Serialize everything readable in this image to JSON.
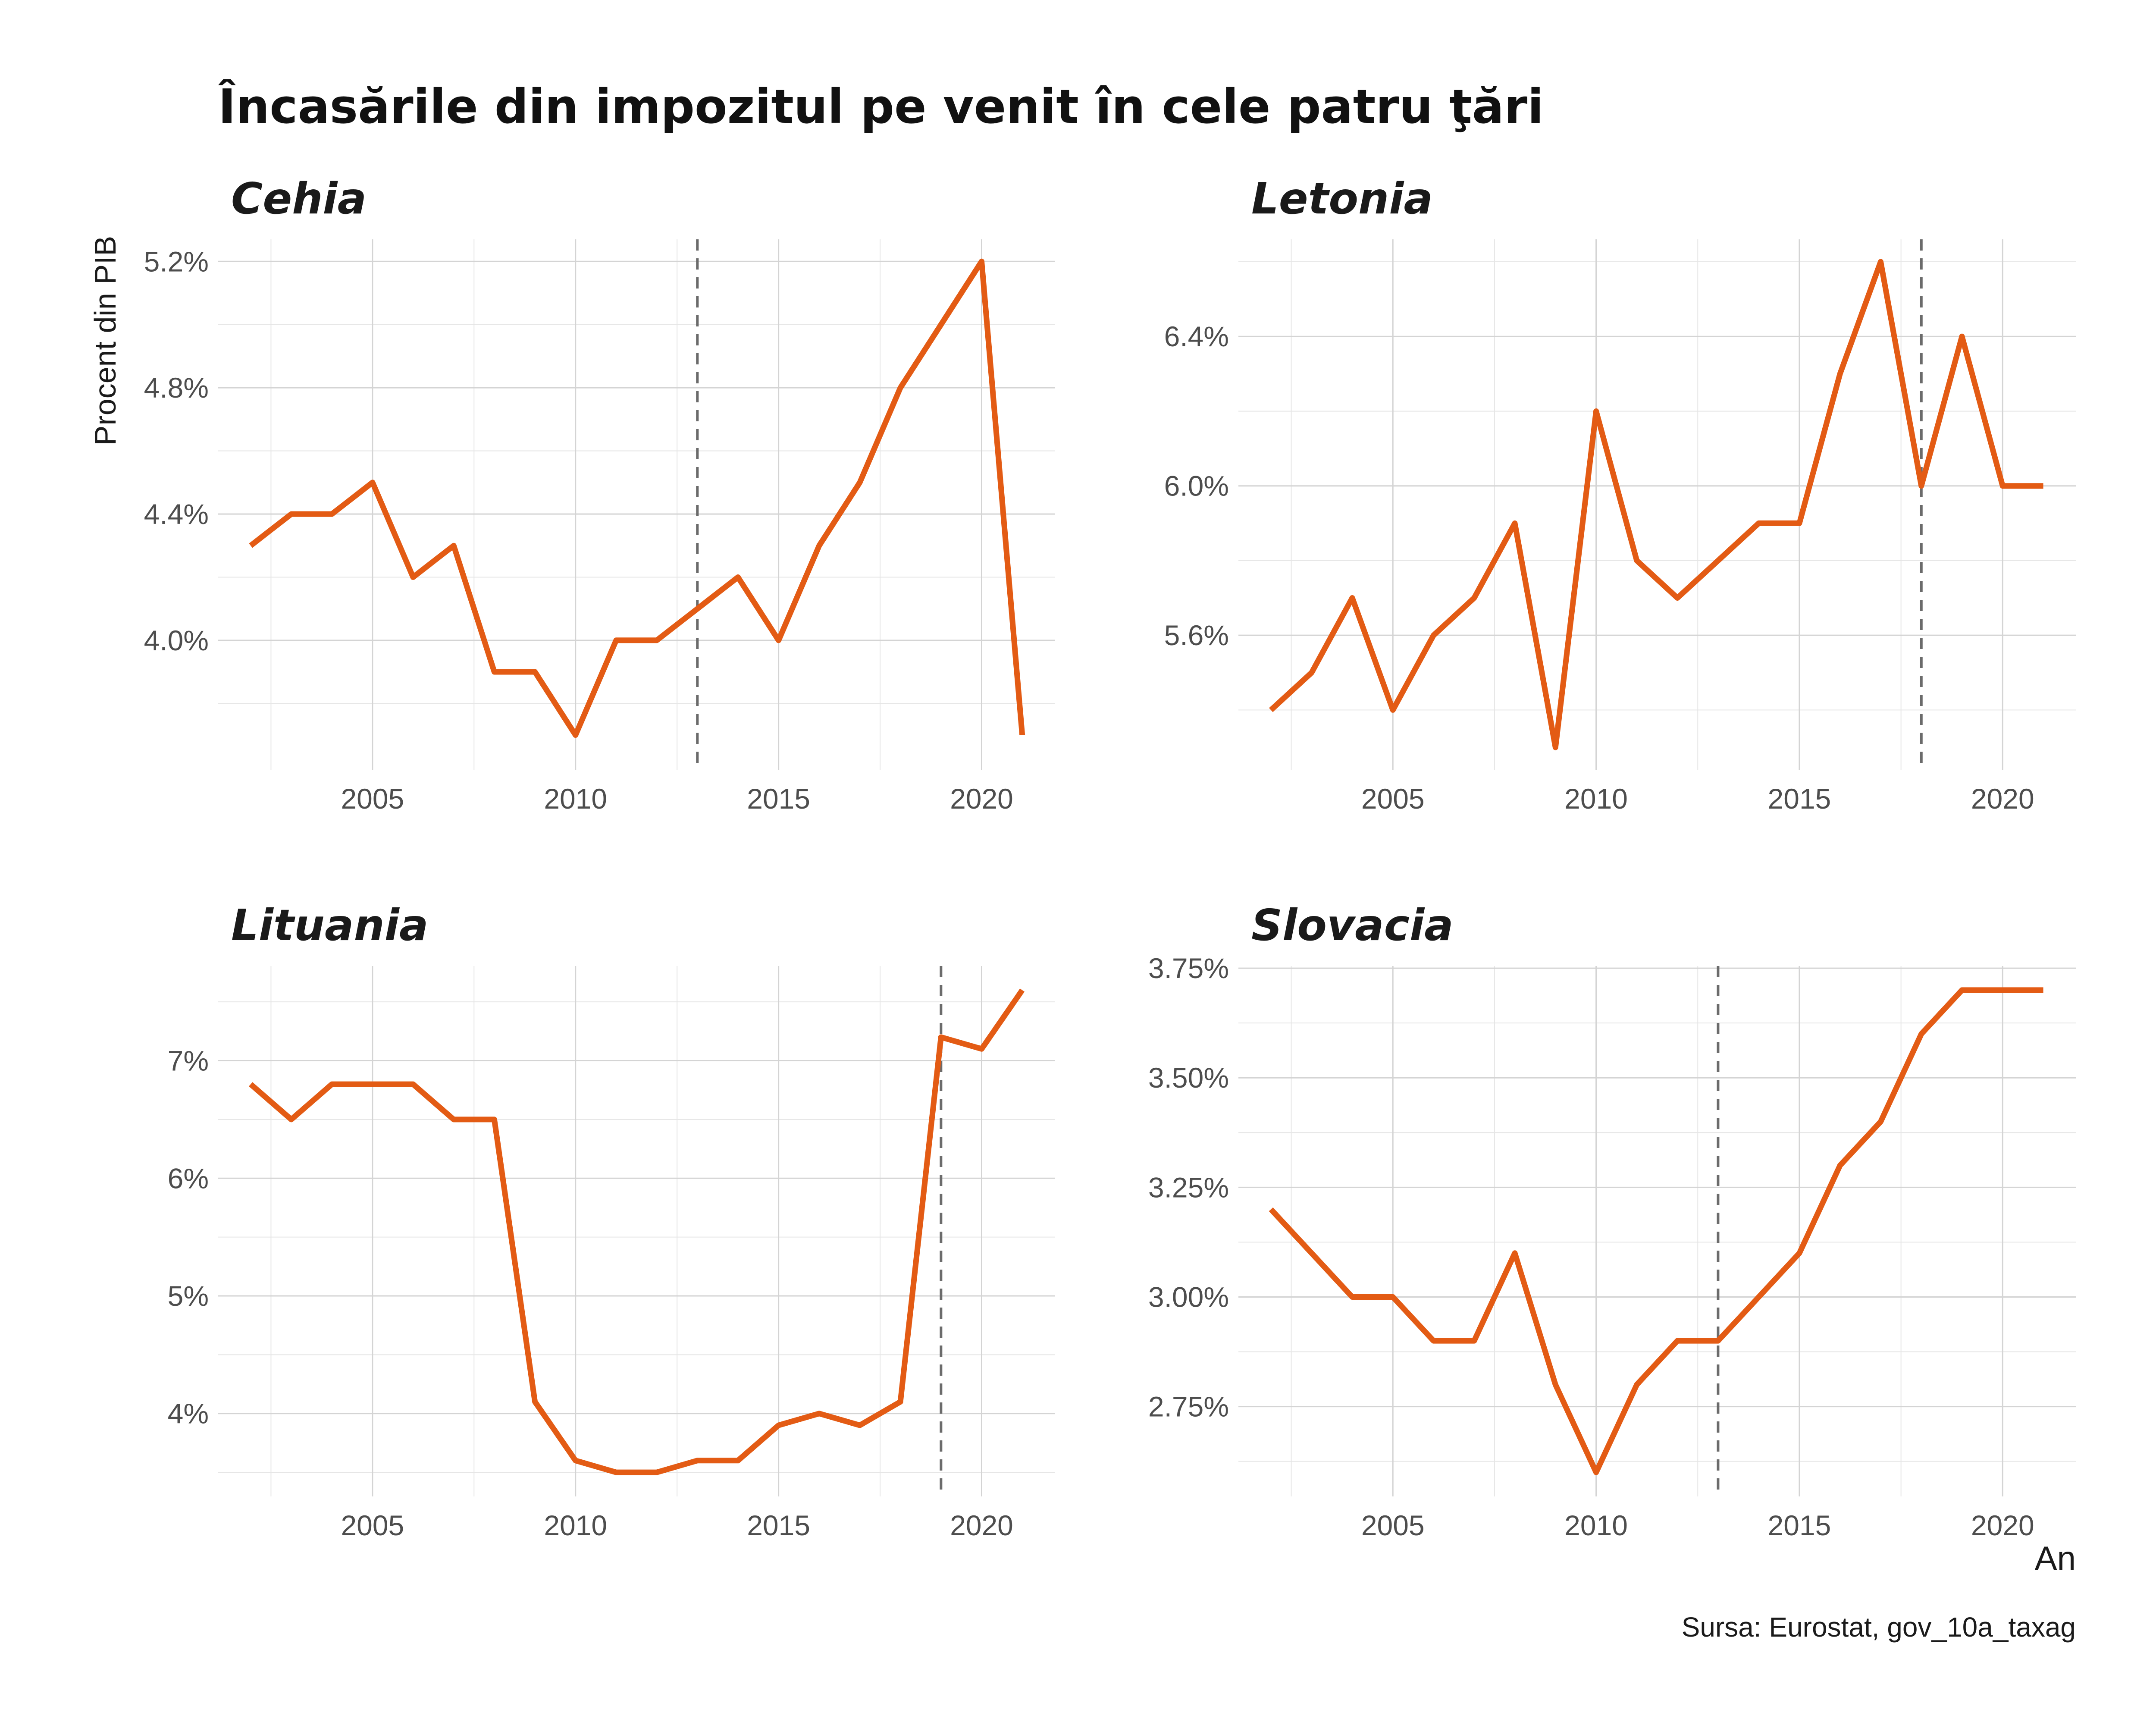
{
  "title": "Încasările din impozitul pe venit în cele patru ţări",
  "x_axis_label": "An",
  "y_axis_label": "Procent din PIB",
  "caption": "Sursa: Eurostat, gov_10a_taxag",
  "colors": {
    "line": "#E35B14",
    "reference": "#6b6b6b",
    "grid": "#d4d4d4"
  },
  "chart_data": [
    {
      "type": "line",
      "facet": "Cehia",
      "x": [
        2002,
        2003,
        2004,
        2005,
        2006,
        2007,
        2008,
        2009,
        2010,
        2011,
        2012,
        2013,
        2014,
        2015,
        2016,
        2017,
        2018,
        2019,
        2020,
        2021
      ],
      "values": [
        4.3,
        4.4,
        4.4,
        4.5,
        4.2,
        4.3,
        3.9,
        3.9,
        3.7,
        4.0,
        4.0,
        4.1,
        4.2,
        4.0,
        4.3,
        4.5,
        4.8,
        5.0,
        5.2,
        3.7
      ],
      "reference_year": 2013,
      "xlim": [
        2001.2,
        2021.8
      ],
      "ylim": [
        3.59,
        5.27
      ],
      "yticks": [
        4.0,
        4.4,
        4.8,
        5.2
      ],
      "ytick_labels": [
        "4.0%",
        "4.4%",
        "4.8%",
        "5.2%"
      ],
      "xticks": [
        2005,
        2010,
        2015,
        2020
      ],
      "xtick_labels": [
        "2005",
        "2010",
        "2015",
        "2020"
      ]
    },
    {
      "type": "line",
      "facet": "Letonia",
      "x": [
        2002,
        2003,
        2004,
        2005,
        2006,
        2007,
        2008,
        2009,
        2010,
        2011,
        2012,
        2013,
        2014,
        2015,
        2016,
        2017,
        2018,
        2019,
        2020,
        2021
      ],
      "values": [
        5.4,
        5.5,
        5.7,
        5.4,
        5.6,
        5.7,
        5.9,
        5.3,
        6.2,
        5.8,
        5.7,
        5.8,
        5.9,
        5.9,
        6.3,
        6.6,
        6.0,
        6.4,
        6.0,
        6.0
      ],
      "reference_year": 2018,
      "xlim": [
        2001.2,
        2021.8
      ],
      "ylim": [
        5.24,
        6.66
      ],
      "yticks": [
        5.6,
        6.0,
        6.4
      ],
      "ytick_labels": [
        "5.6%",
        "6.0%",
        "6.4%"
      ],
      "xticks": [
        2005,
        2010,
        2015,
        2020
      ],
      "xtick_labels": [
        "2005",
        "2010",
        "2015",
        "2020"
      ]
    },
    {
      "type": "line",
      "facet": "Lituania",
      "x": [
        2002,
        2003,
        2004,
        2005,
        2006,
        2007,
        2008,
        2009,
        2010,
        2011,
        2012,
        2013,
        2014,
        2015,
        2016,
        2017,
        2018,
        2019,
        2020,
        2021
      ],
      "values": [
        6.8,
        6.5,
        6.8,
        6.8,
        6.8,
        6.5,
        6.5,
        4.1,
        3.6,
        3.5,
        3.5,
        3.6,
        3.6,
        3.9,
        4.0,
        3.9,
        4.1,
        7.2,
        7.1,
        7.6
      ],
      "reference_year": 2019,
      "xlim": [
        2001.2,
        2021.8
      ],
      "ylim": [
        3.295,
        7.805
      ],
      "yticks": [
        4,
        5,
        6,
        7
      ],
      "ytick_labels": [
        "4%",
        "5%",
        "6%",
        "7%"
      ],
      "xticks": [
        2005,
        2010,
        2015,
        2020
      ],
      "xtick_labels": [
        "2005",
        "2010",
        "2015",
        "2020"
      ]
    },
    {
      "type": "line",
      "facet": "Slovacia",
      "x": [
        2002,
        2003,
        2004,
        2005,
        2006,
        2007,
        2008,
        2009,
        2010,
        2011,
        2012,
        2013,
        2014,
        2015,
        2016,
        2017,
        2018,
        2019,
        2020,
        2021
      ],
      "values": [
        3.2,
        3.1,
        3.0,
        3.0,
        2.9,
        2.9,
        3.1,
        2.8,
        2.6,
        2.8,
        2.9,
        2.9,
        3.0,
        3.1,
        3.3,
        3.4,
        3.6,
        3.7,
        3.7,
        3.7
      ],
      "reference_year": 2013,
      "xlim": [
        2001.2,
        2021.8
      ],
      "ylim": [
        2.545,
        3.755
      ],
      "yticks": [
        2.75,
        3.0,
        3.25,
        3.5,
        3.75
      ],
      "ytick_labels": [
        "2.75%",
        "3.00%",
        "3.25%",
        "3.50%",
        "3.75%"
      ],
      "xticks": [
        2005,
        2010,
        2015,
        2020
      ],
      "xtick_labels": [
        "2005",
        "2010",
        "2015",
        "2020"
      ]
    }
  ]
}
